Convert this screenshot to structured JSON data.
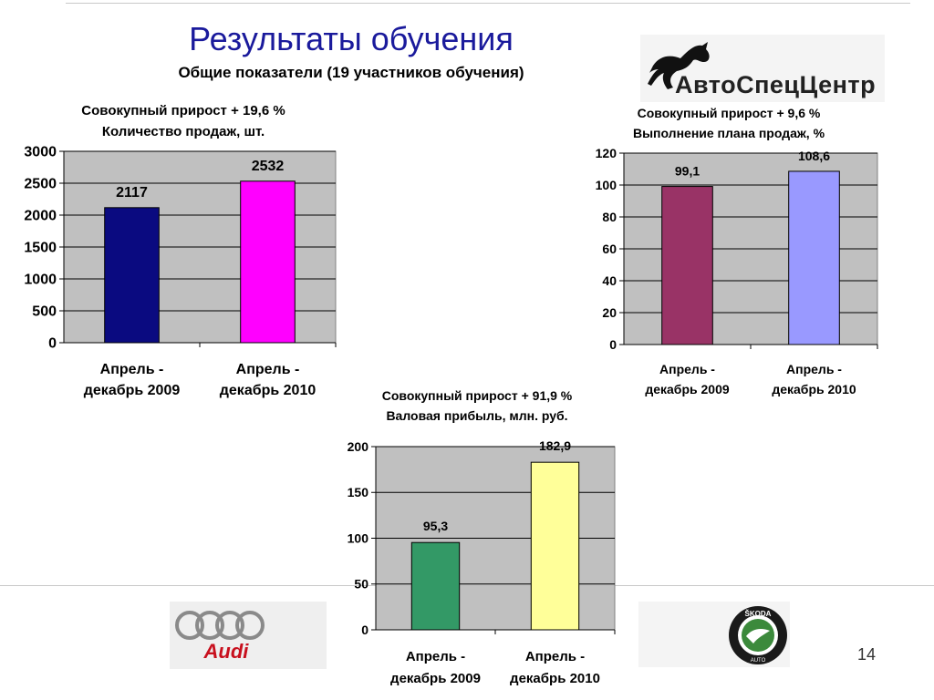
{
  "slide": {
    "title": "Результаты обучения",
    "subtitle": "Общие показатели (19 участников обучения)",
    "logo_text": "АвтоСпецЦентр",
    "audi_text": "Audi",
    "skoda_text": "ŠKODA",
    "skoda_subtext": "AUTO",
    "page_number": "14"
  },
  "chart_data": [
    {
      "type": "bar",
      "title": "Совокупный прирост + 19,6 %",
      "subtitle": "Количество продаж, шт.",
      "categories": [
        [
          "Апрель -",
          "декабрь 2009"
        ],
        [
          "Апрель -",
          "декабрь 2010"
        ]
      ],
      "values": [
        2117,
        2532
      ],
      "value_labels": [
        "2117",
        "2532"
      ],
      "bar_colors": [
        "#0a0a80",
        "#ff00ff"
      ],
      "ylim": [
        0,
        3000
      ],
      "yticks": [
        0,
        500,
        1000,
        1500,
        2000,
        2500,
        3000
      ],
      "ytick_labels": [
        "0",
        "500",
        "1000",
        "1500",
        "2000",
        "2500",
        "3000"
      ],
      "grid": true,
      "plot_bg": "#c0c0c0"
    },
    {
      "type": "bar",
      "title": "Совокупный прирост + 9,6 %",
      "subtitle": "Выполнение плана продаж, %",
      "categories": [
        [
          "Апрель -",
          "декабрь 2009"
        ],
        [
          "Апрель -",
          "декабрь 2010"
        ]
      ],
      "values": [
        99.1,
        108.6
      ],
      "value_labels": [
        "99,1",
        "108,6"
      ],
      "bar_colors": [
        "#993366",
        "#9999ff"
      ],
      "ylim": [
        0,
        120
      ],
      "yticks": [
        0,
        20,
        40,
        60,
        80,
        100,
        120
      ],
      "ytick_labels": [
        "0",
        "20",
        "40",
        "60",
        "80",
        "100",
        "120"
      ],
      "grid": true,
      "plot_bg": "#c0c0c0"
    },
    {
      "type": "bar",
      "title": "Совокупный прирост + 91,9 %",
      "subtitle": "Валовая прибыль, млн. руб.",
      "categories": [
        [
          "Апрель -",
          "декабрь 2009"
        ],
        [
          "Апрель -",
          "декабрь 2010"
        ]
      ],
      "values": [
        95.3,
        182.9
      ],
      "value_labels": [
        "95,3",
        "182,9"
      ],
      "bar_colors": [
        "#339966",
        "#ffff99"
      ],
      "ylim": [
        0,
        200
      ],
      "yticks": [
        0,
        50,
        100,
        150,
        200
      ],
      "ytick_labels": [
        "0",
        "50",
        "100",
        "150",
        "200"
      ],
      "grid": true,
      "plot_bg": "#c0c0c0"
    }
  ]
}
